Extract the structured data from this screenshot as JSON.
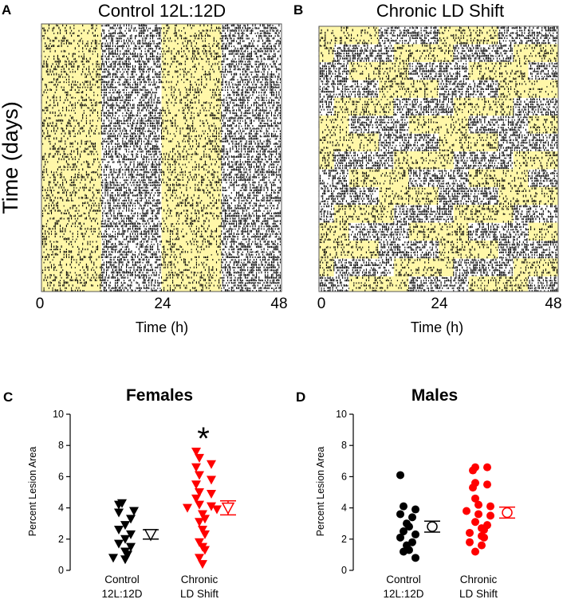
{
  "panel_a": {
    "letter": "A",
    "title": "Control 12L:12D"
  },
  "panel_b": {
    "letter": "B",
    "title": "Chronic LD Shift"
  },
  "actogram_axes": {
    "ylabel": "Time (days)",
    "xlabel": "Time (h)",
    "ticks": [
      "0",
      "24",
      "48"
    ]
  },
  "colors": {
    "light": "#fff7a8",
    "dark": "#ffffff",
    "activity": "#000000",
    "control": "#000000",
    "shift": "#ff0000"
  },
  "chart_data": [
    {
      "id": "C",
      "letter": "C",
      "type": "scatter",
      "title": "Females",
      "ylabel": "Percent Lesion Area",
      "ylim": [
        0,
        10
      ],
      "yticks": [
        "0",
        "2",
        "4",
        "6",
        "8",
        "10"
      ],
      "categories": [
        "Control\n12L:12D",
        "Chronic\nLD Shift"
      ],
      "category_lines": [
        [
          "Control",
          "12L:12D"
        ],
        [
          "Chronic",
          "LD Shift"
        ]
      ],
      "marker": "triangle-down",
      "annotation": "*",
      "series": [
        {
          "name": "Control 12L:12D",
          "color": "#000000",
          "values": [
            4.2,
            4.3,
            3.8,
            3.7,
            3.3,
            2.9,
            2.6,
            2.3,
            2.0,
            1.7,
            1.5,
            1.2,
            1.0,
            0.8,
            0.7
          ],
          "mean": 2.3,
          "sem": 0.3
        },
        {
          "name": "Chronic LD Shift",
          "color": "#ff0000",
          "values": [
            7.6,
            7.2,
            6.8,
            6.6,
            6.1,
            5.8,
            5.5,
            5.0,
            4.9,
            4.6,
            4.2,
            4.1,
            4.0,
            3.9,
            3.6,
            3.3,
            3.1,
            2.6,
            2.3,
            1.8,
            1.5,
            1.3,
            0.8,
            0.4
          ],
          "mean": 4.0,
          "sem": 0.45
        }
      ]
    },
    {
      "id": "D",
      "letter": "D",
      "type": "scatter",
      "title": "Males",
      "ylabel": "Percent Lesion Area",
      "ylim": [
        0,
        10
      ],
      "yticks": [
        "0",
        "2",
        "4",
        "6",
        "8",
        "10"
      ],
      "categories": [
        "Control\n12L:12D",
        "Chronic\nLD Shift"
      ],
      "category_lines": [
        [
          "Control",
          "12L:12D"
        ],
        [
          "Chronic",
          "LD Shift"
        ]
      ],
      "marker": "circle",
      "series": [
        {
          "name": "Control 12L:12D",
          "color": "#000000",
          "values": [
            6.1,
            4.1,
            3.9,
            3.6,
            3.4,
            3.0,
            2.8,
            2.5,
            2.3,
            2.1,
            1.8,
            1.6,
            1.3,
            1.2,
            0.8
          ],
          "mean": 2.8,
          "sem": 0.35
        },
        {
          "name": "Chronic LD Shift",
          "color": "#ff0000",
          "values": [
            6.6,
            6.6,
            6.4,
            5.6,
            5.5,
            5.3,
            4.6,
            4.2,
            4.1,
            3.8,
            3.6,
            3.5,
            3.1,
            2.9,
            2.7,
            2.6,
            2.4,
            2.2,
            2.1,
            1.8,
            1.6,
            1.2
          ],
          "mean": 3.7,
          "sem": 0.35
        }
      ]
    }
  ]
}
